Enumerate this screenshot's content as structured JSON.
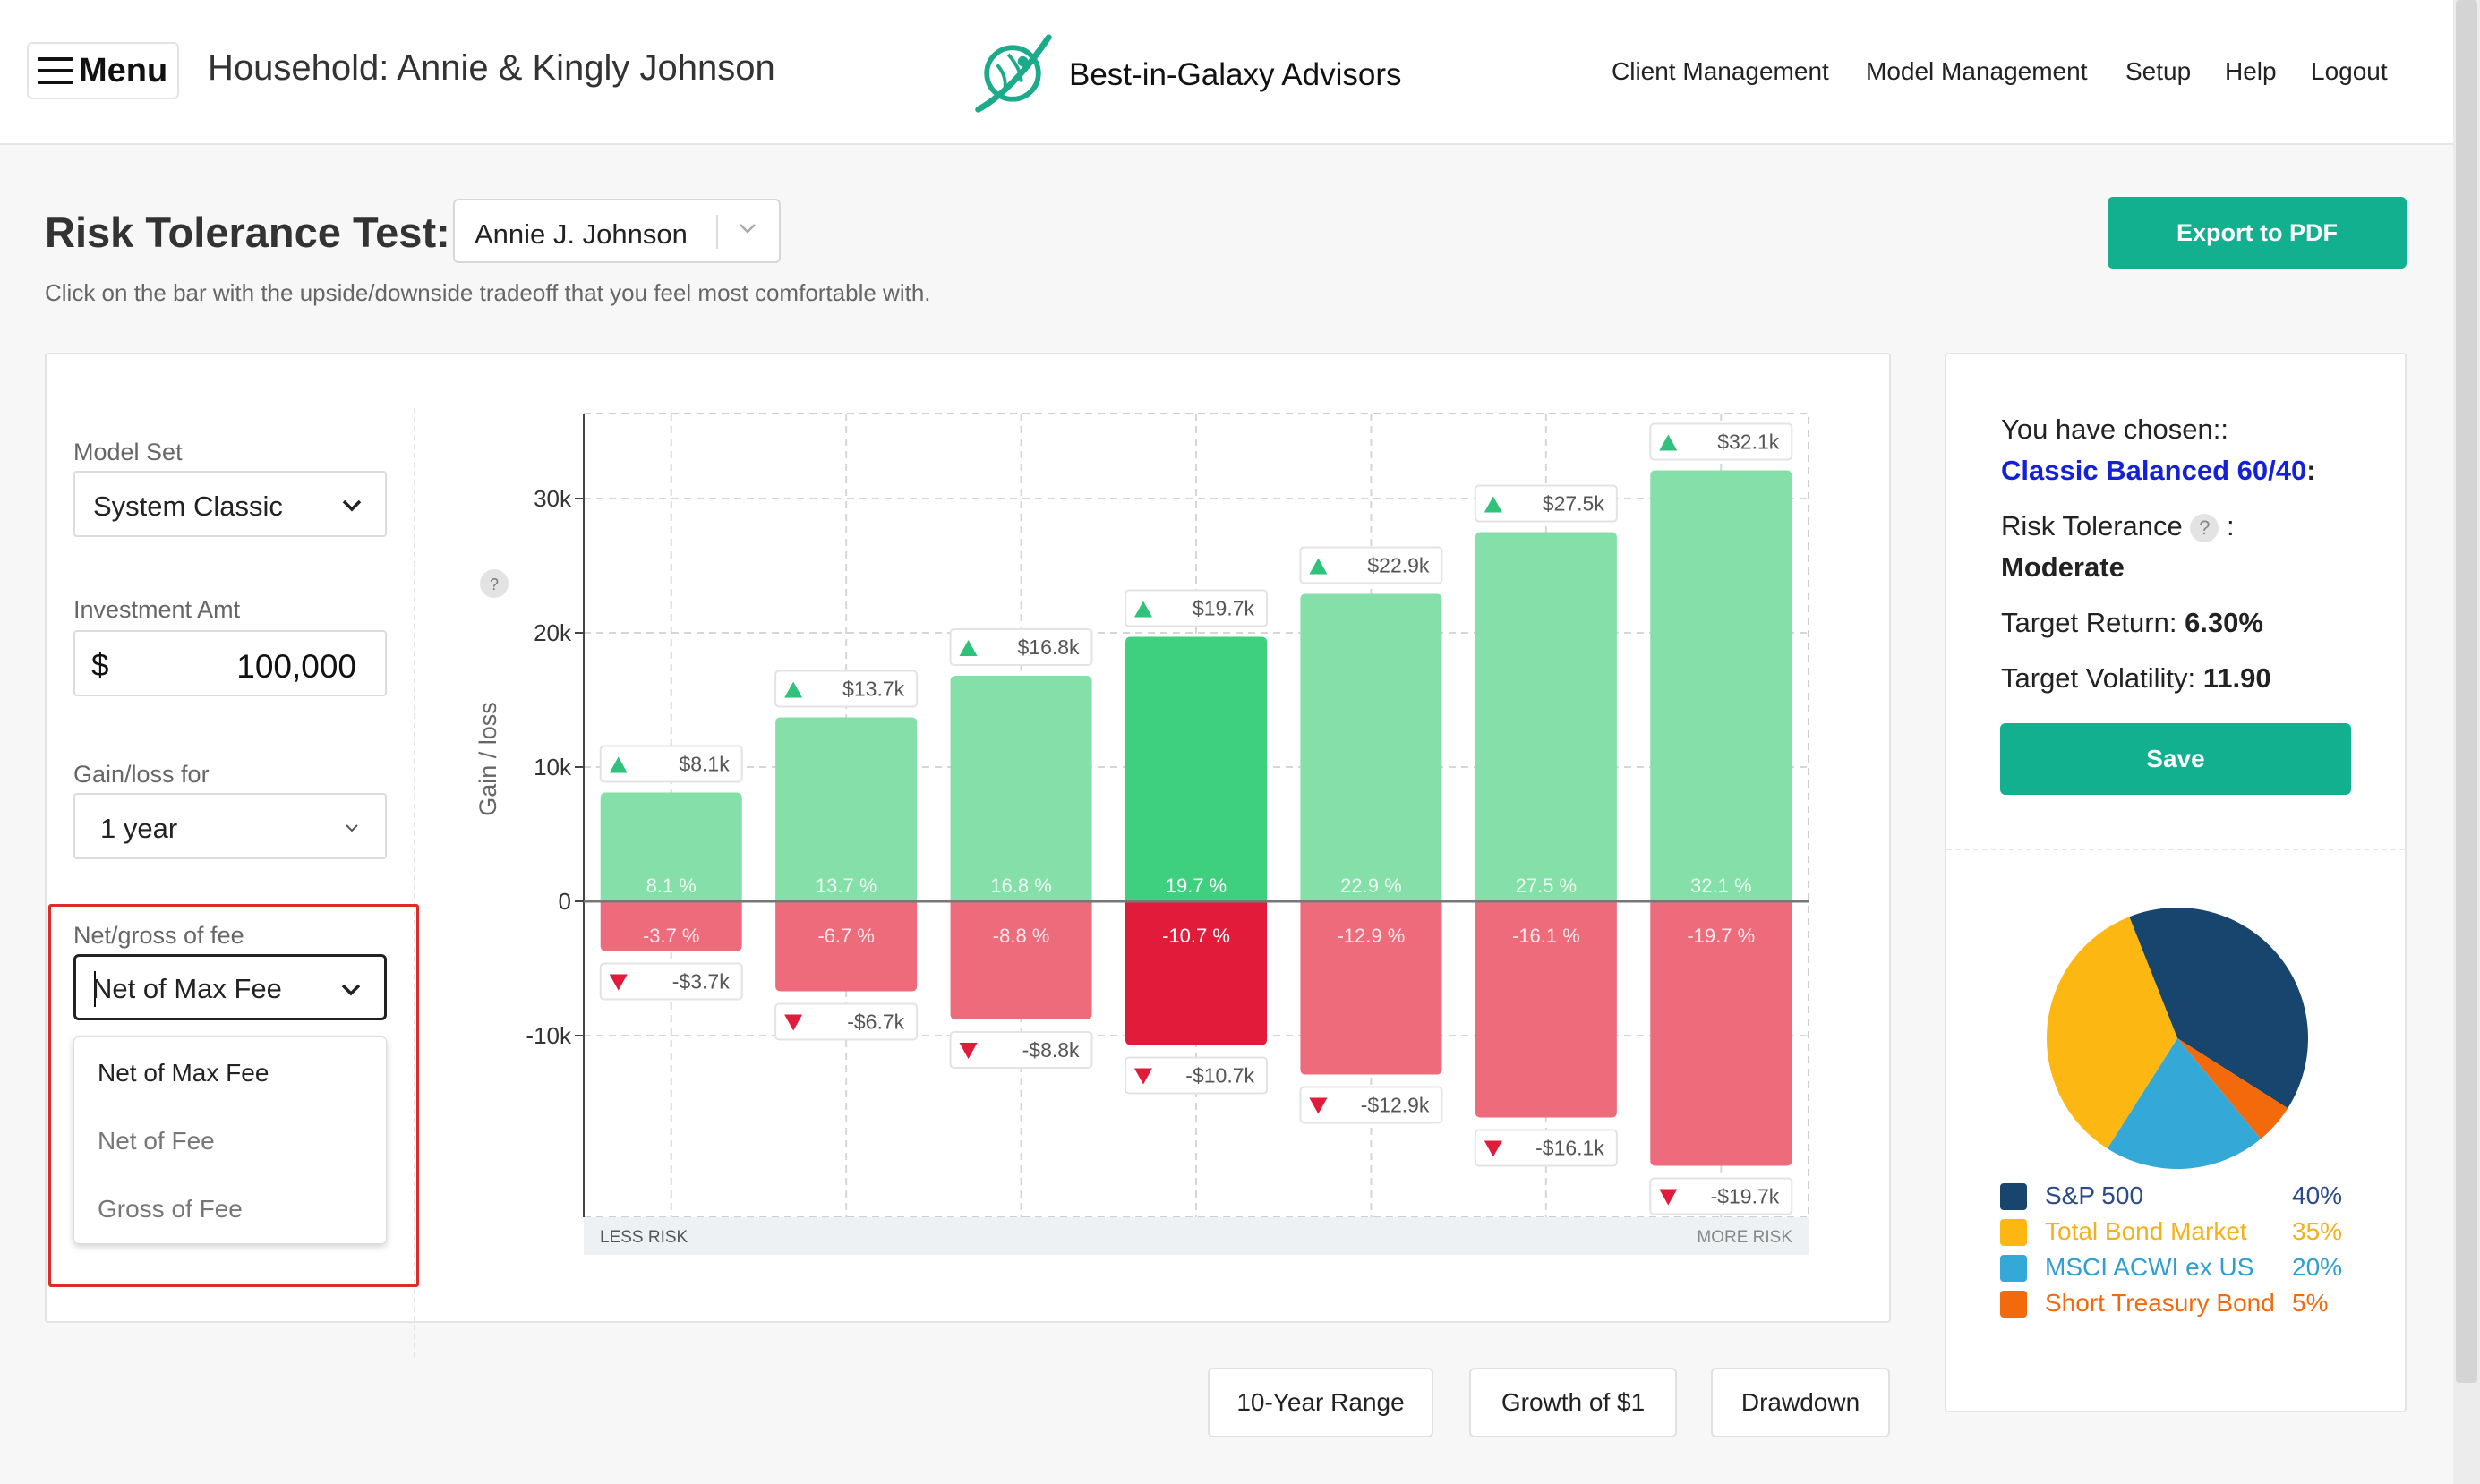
{
  "header": {
    "menu_label": "Menu",
    "household": "Household: Annie & Kingly Johnson",
    "brand": "Best-in-Galaxy Advisors",
    "nav": [
      "Client Management",
      "Model Management",
      "Setup",
      "Help",
      "Logout"
    ]
  },
  "page": {
    "title": "Risk Tolerance Test:",
    "person": "Annie J. Johnson",
    "export_label": "Export to PDF",
    "subtitle": "Click on the bar with the upside/downside tradeoff that you feel most comfortable with."
  },
  "form": {
    "model_set_label": "Model Set",
    "model_set_value": "System Classic",
    "investment_label": "Investment Amt",
    "currency_symbol": "$",
    "investment_value": "100,000",
    "gainloss_label": "Gain/loss for",
    "gainloss_value": "1 year",
    "fee_label": "Net/gross of fee",
    "fee_value": "Net of Max Fee",
    "fee_options": [
      "Net of Max Fee",
      "Net of Fee",
      "Gross of Fee"
    ]
  },
  "chart_data": {
    "type": "bar",
    "ylabel": "Gain / loss",
    "y_ticks": [
      "30k",
      "20k",
      "10k",
      "0",
      "-10k"
    ],
    "ylim": [
      -24000,
      36000
    ],
    "x_left_label": "LESS RISK",
    "x_right_label": "MORE RISK",
    "selected_index": 3,
    "bars": [
      {
        "gain": 8100,
        "loss": -3700,
        "gain_pct": "8.1 %",
        "loss_pct": "-3.7 %",
        "gain_label": "$8.1k",
        "loss_label": "-$3.7k"
      },
      {
        "gain": 13700,
        "loss": -6700,
        "gain_pct": "13.7 %",
        "loss_pct": "-6.7 %",
        "gain_label": "$13.7k",
        "loss_label": "-$6.7k"
      },
      {
        "gain": 16800,
        "loss": -8800,
        "gain_pct": "16.8 %",
        "loss_pct": "-8.8 %",
        "gain_label": "$16.8k",
        "loss_label": "-$8.8k"
      },
      {
        "gain": 19700,
        "loss": -10700,
        "gain_pct": "19.7 %",
        "loss_pct": "-10.7 %",
        "gain_label": "$19.7k",
        "loss_label": "-$10.7k"
      },
      {
        "gain": 22900,
        "loss": -12900,
        "gain_pct": "22.9 %",
        "loss_pct": "-12.9 %",
        "gain_label": "$22.9k",
        "loss_label": "-$12.9k"
      },
      {
        "gain": 27500,
        "loss": -16100,
        "gain_pct": "27.5 %",
        "loss_pct": "-16.1 %",
        "gain_label": "$27.5k",
        "loss_label": "-$16.1k"
      },
      {
        "gain": 32100,
        "loss": -19700,
        "gain_pct": "32.1 %",
        "loss_pct": "-19.7 %",
        "gain_label": "$32.1k",
        "loss_label": "-$19.7k"
      }
    ],
    "colors": {
      "gain": "#84dfa9",
      "gain_selected": "#3ecf7f",
      "loss": "#ee6b7c",
      "loss_selected": "#e21b3a",
      "up_arrow": "#2ec27a",
      "down_arrow": "#e21b3a"
    }
  },
  "buttons": {
    "range": "10-Year Range",
    "growth": "Growth of $1",
    "drawdown": "Drawdown"
  },
  "summary": {
    "chosen_label": "You have chosen::",
    "model_name": "Classic Balanced 60/40",
    "model_suffix": ":",
    "risk_label": "Risk Tolerance",
    "risk_help": "?",
    "risk_colon": ":",
    "risk_value": "Moderate",
    "return_label": "Target Return:",
    "return_value": "6.30%",
    "vol_label": "Target Volatility:",
    "vol_value": "11.90",
    "save_label": "Save"
  },
  "allocation": [
    {
      "name": "S&P 500",
      "pct": "40%",
      "value": 40,
      "color": "#17456e",
      "text_color": "#2a4a8a"
    },
    {
      "name": "Total Bond Market",
      "pct": "35%",
      "value": 35,
      "color": "#fdb713",
      "text_color": "#f5b01b"
    },
    {
      "name": "MSCI ACWI ex US",
      "pct": "20%",
      "value": 20,
      "color": "#34a9d8",
      "text_color": "#2f9fd0"
    },
    {
      "name": "Short Treasury Bond",
      "pct": "5%",
      "value": 5,
      "color": "#f26a0c",
      "text_color": "#f26a0c"
    }
  ]
}
